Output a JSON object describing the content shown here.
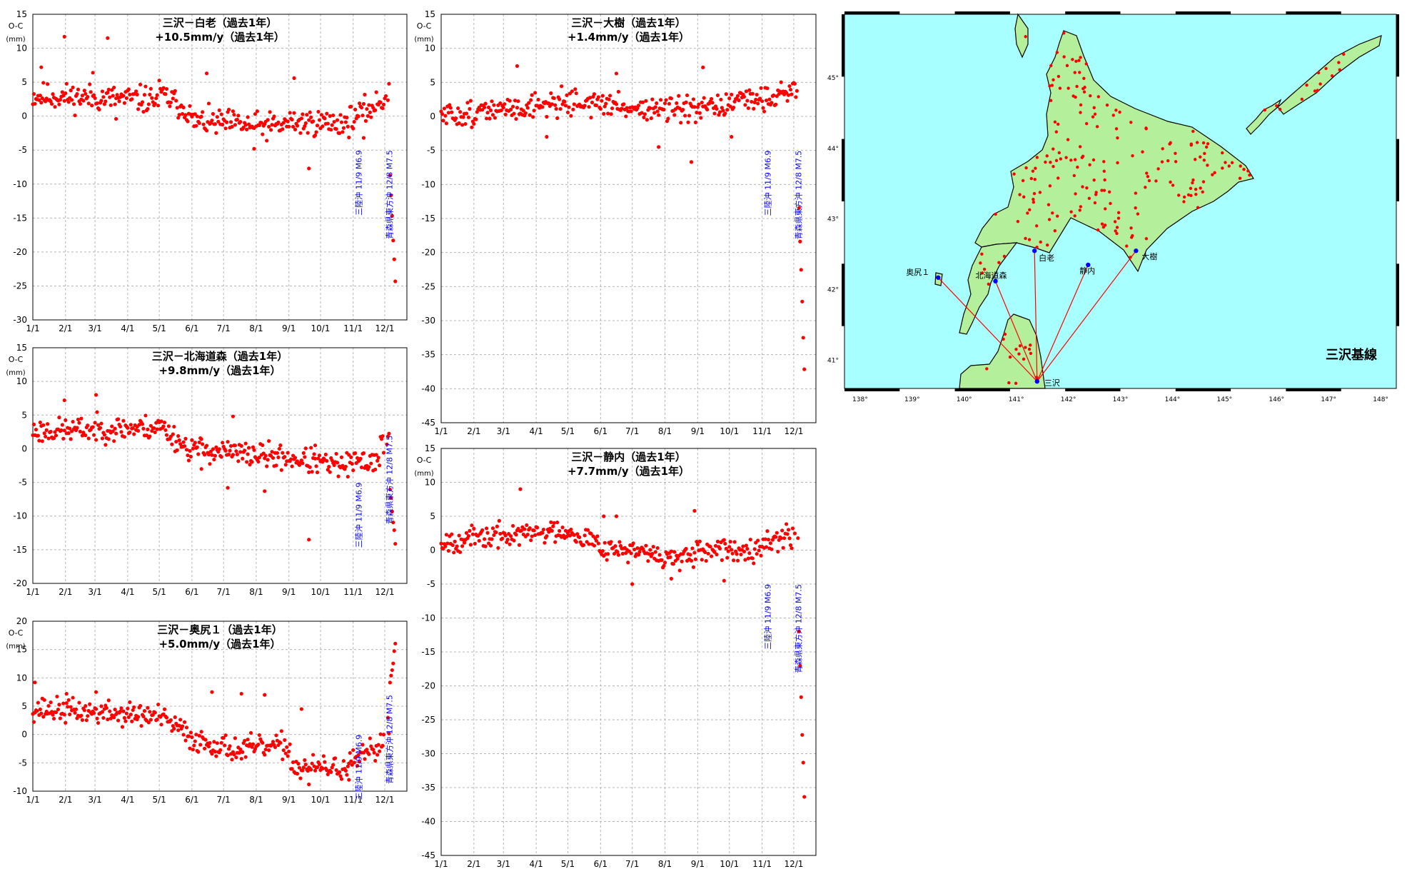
{
  "colors": {
    "point": "#ff0000",
    "grid": "#b4b4b4",
    "eq_label": "#0000ff",
    "land": "#b4f09c",
    "sea": "#a8ffff",
    "baseline": "#ff0000",
    "station": "#0000ff"
  },
  "chart_data": [
    {
      "type": "scatter",
      "id": "shirao",
      "title": "三沢－白老（過去1年）",
      "subtitle": "+10.5mm/y（過去1年）",
      "ylabel_top": "O-C",
      "ylabel_unit": "(mm)",
      "ylim": [
        -30,
        15
      ],
      "yticks": [
        15,
        10,
        5,
        0,
        -5,
        -10,
        -15,
        -20,
        -25,
        -30
      ],
      "xticks": [
        "1/1",
        "2/1",
        "3/1",
        "4/1",
        "5/1",
        "6/1",
        "7/1",
        "8/1",
        "9/1",
        "10/1",
        "11/1",
        "12/1"
      ],
      "x_day_ticks": [
        0,
        31,
        59,
        90,
        120,
        151,
        181,
        212,
        243,
        273,
        304,
        334
      ],
      "xlim": [
        0,
        355
      ],
      "segments": [
        [
          0,
          3.0,
          2.4
        ],
        [
          120,
          3.4,
          0.6
        ],
        [
          150,
          -0.8,
          -1.2
        ],
        [
          200,
          -1.5,
          -1.4
        ],
        [
          240,
          -0.9,
          -1.0
        ],
        [
          300,
          -0.6,
          2.0
        ],
        [
          330,
          2.0,
          3.8
        ],
        [
          339,
          -8.0,
          -28.0
        ]
      ],
      "outliers": [
        [
          8,
          7.2
        ],
        [
          30,
          11.7
        ],
        [
          57,
          6.4
        ],
        [
          71,
          11.5
        ],
        [
          79,
          -0.4
        ],
        [
          165,
          6.3
        ],
        [
          210,
          -4.8
        ],
        [
          248,
          5.6
        ],
        [
          262,
          -7.7
        ],
        [
          314,
          -3.2
        ]
      ],
      "noise": 1.4,
      "seed": 11,
      "earthquakes": [
        {
          "day": 312,
          "label": "三陸沖 11/9 M6.9",
          "y": -5
        },
        {
          "day": 341,
          "label": "青森県東方沖 12/8 M7.5",
          "y": -5
        }
      ]
    },
    {
      "type": "scatter",
      "id": "hokkaidomori",
      "title": "三沢－北海道森（過去1年）",
      "subtitle": "+9.8mm/y（過去1年）",
      "ylabel_top": "O-C",
      "ylabel_unit": "(mm)",
      "ylim": [
        -20,
        15
      ],
      "yticks": [
        15,
        10,
        5,
        0,
        -5,
        -10,
        -15,
        -20
      ],
      "xticks": [
        "1/1",
        "2/1",
        "3/1",
        "4/1",
        "5/1",
        "6/1",
        "7/1",
        "8/1",
        "9/1",
        "10/1",
        "11/1",
        "12/1"
      ],
      "x_day_ticks": [
        0,
        31,
        59,
        90,
        120,
        151,
        181,
        212,
        243,
        273,
        304,
        334
      ],
      "xlim": [
        0,
        355
      ],
      "segments": [
        [
          0,
          2.6,
          3.2
        ],
        [
          120,
          3.6,
          0.3
        ],
        [
          145,
          0.2,
          -0.8
        ],
        [
          200,
          -0.8,
          -1.3
        ],
        [
          240,
          -1.3,
          -2.6
        ],
        [
          290,
          -2.6,
          -1.5
        ],
        [
          330,
          0.8,
          1.8
        ],
        [
          339,
          -6.0,
          -15.8
        ]
      ],
      "outliers": [
        [
          30,
          7.2
        ],
        [
          60,
          8.0
        ],
        [
          160,
          -3.0
        ],
        [
          185,
          -5.8
        ],
        [
          190,
          4.8
        ],
        [
          220,
          -6.3
        ],
        [
          262,
          -13.5
        ],
        [
          268,
          0.5
        ],
        [
          318,
          -3.0
        ]
      ],
      "noise": 1.3,
      "seed": 23,
      "earthquakes": [
        {
          "day": 312,
          "label": "三陸沖 11/9 M6.9",
          "y": -5
        },
        {
          "day": 341,
          "label": "青森県東方沖 12/8 M7.5",
          "y": 2
        }
      ]
    },
    {
      "type": "scatter",
      "id": "okushiri",
      "title": "三沢－奥尻１（過去1年）",
      "subtitle": "+5.0mm/y（過去1年）",
      "ylabel_top": "O-C",
      "ylabel_unit": "(mm)",
      "ylim": [
        -10,
        20
      ],
      "yticks": [
        20,
        15,
        10,
        5,
        0,
        -5,
        -10
      ],
      "xticks": [
        "1/1",
        "2/1",
        "3/1",
        "4/1",
        "5/1",
        "6/1",
        "7/1",
        "8/1",
        "9/1",
        "10/1",
        "11/1",
        "12/1"
      ],
      "x_day_ticks": [
        0,
        31,
        59,
        90,
        120,
        151,
        181,
        212,
        243,
        273,
        304,
        334
      ],
      "xlim": [
        0,
        355
      ],
      "segments": [
        [
          0,
          4.6,
          3.2
        ],
        [
          120,
          3.0,
          0.5
        ],
        [
          145,
          -0.5,
          -3.0
        ],
        [
          200,
          -2.5,
          -2.0
        ],
        [
          245,
          -5.8,
          -6.0
        ],
        [
          300,
          -5.5,
          -2.0
        ],
        [
          330,
          -2.0,
          2.0
        ],
        [
          339,
          9.0,
          17.5
        ]
      ],
      "outliers": [
        [
          2,
          9.2
        ],
        [
          32,
          7.2
        ],
        [
          60,
          7.5
        ],
        [
          170,
          7.5
        ],
        [
          198,
          7.2
        ],
        [
          220,
          7.0
        ],
        [
          255,
          4.5
        ],
        [
          262,
          -8.8
        ],
        [
          300,
          -8.0
        ]
      ],
      "noise": 1.5,
      "seed": 37,
      "earthquakes": [
        {
          "day": 312,
          "label": "三陸沖 11/9 M6.9",
          "y": 0
        },
        {
          "day": 341,
          "label": "青森県東方沖 12/8 M7.5",
          "y": 7
        }
      ]
    },
    {
      "type": "scatter",
      "id": "taiki",
      "title": "三沢－大樹（過去1年）",
      "subtitle": "+1.4mm/y（過去1年）",
      "ylabel_top": "O-C",
      "ylabel_unit": "(mm)",
      "ylim": [
        -45,
        15
      ],
      "yticks": [
        15,
        10,
        5,
        0,
        -5,
        -10,
        -15,
        -20,
        -25,
        -30,
        -35,
        -40,
        -45
      ],
      "xticks": [
        "1/1",
        "2/1",
        "3/1",
        "4/1",
        "5/1",
        "6/1",
        "7/1",
        "8/1",
        "9/1",
        "10/1",
        "11/1",
        "12/1"
      ],
      "x_day_ticks": [
        0,
        31,
        59,
        90,
        120,
        151,
        181,
        212,
        243,
        273,
        304,
        334
      ],
      "xlim": [
        0,
        355
      ],
      "segments": [
        [
          0,
          0.0,
          1.0
        ],
        [
          60,
          1.0,
          2.3
        ],
        [
          120,
          2.3,
          1.3
        ],
        [
          180,
          1.3,
          0.7
        ],
        [
          240,
          0.7,
          2.6
        ],
        [
          300,
          2.6,
          4.0
        ],
        [
          339,
          -13.0,
          -42.0
        ]
      ],
      "outliers": [
        [
          72,
          7.4
        ],
        [
          100,
          -3.0
        ],
        [
          166,
          6.3
        ],
        [
          206,
          -4.5
        ],
        [
          237,
          -6.7
        ],
        [
          248,
          7.2
        ],
        [
          275,
          -3.0
        ]
      ],
      "noise": 1.3,
      "seed": 51,
      "earthquakes": [
        {
          "day": 312,
          "label": "三陸沖 11/9 M6.9",
          "y": -5
        },
        {
          "day": 341,
          "label": "青森県東方沖 12/8 M7.5",
          "y": -5
        }
      ]
    },
    {
      "type": "scatter",
      "id": "shizunai",
      "title": "三沢－静内（過去1年）",
      "subtitle": "+7.7mm/y（過去1年）",
      "ylabel_top": "O-C",
      "ylabel_unit": "(mm)",
      "ylim": [
        -45,
        15
      ],
      "yticks": [
        15,
        10,
        5,
        0,
        -5,
        -10,
        -15,
        -20,
        -25,
        -30,
        -35,
        -40,
        -45
      ],
      "xticks": [
        "1/1",
        "2/1",
        "3/1",
        "4/1",
        "5/1",
        "6/1",
        "7/1",
        "8/1",
        "9/1",
        "10/1",
        "11/1",
        "12/1"
      ],
      "x_day_ticks": [
        0,
        31,
        59,
        90,
        120,
        151,
        181,
        212,
        243,
        273,
        304,
        334
      ],
      "xlim": [
        0,
        355
      ],
      "segments": [
        [
          0,
          1.3,
          3.0
        ],
        [
          120,
          3.0,
          0.2
        ],
        [
          160,
          0.4,
          -1.0
        ],
        [
          210,
          -1.0,
          -1.5
        ],
        [
          240,
          -0.5,
          0.5
        ],
        [
          300,
          0.8,
          2.5
        ],
        [
          339,
          -12.0,
          -41.5
        ]
      ],
      "outliers": [
        [
          75,
          9.0
        ],
        [
          154,
          5.0
        ],
        [
          166,
          5.0
        ],
        [
          181,
          -5.0
        ],
        [
          218,
          -4.2
        ],
        [
          240,
          5.8
        ],
        [
          268,
          -4.5
        ]
      ],
      "noise": 1.2,
      "seed": 67,
      "earthquakes": [
        {
          "day": 312,
          "label": "三陸沖 11/9 M6.9",
          "y": -5
        },
        {
          "day": 341,
          "label": "青森県東方沖 12/8 M7.5",
          "y": -5
        }
      ]
    }
  ],
  "map": {
    "title": "三沢基線",
    "lon_labels": [
      "138°",
      "139°",
      "140°",
      "141°",
      "142°",
      "143°",
      "144°",
      "145°",
      "146°",
      "147°",
      "148°"
    ],
    "lat_labels": [
      "45°",
      "44°",
      "43°",
      "42°",
      "41°"
    ],
    "lon_range": [
      137.7,
      148.3
    ],
    "lat_range": [
      40.6,
      45.9
    ],
    "stations": [
      {
        "name": "三沢",
        "lon": 141.4,
        "lat": 40.7
      },
      {
        "name": "白老",
        "lon": 141.35,
        "lat": 42.55
      },
      {
        "name": "静内",
        "lon": 142.38,
        "lat": 42.35
      },
      {
        "name": "大樹",
        "lon": 143.3,
        "lat": 42.55
      },
      {
        "name": "北海道森",
        "lon": 140.6,
        "lat": 42.12
      },
      {
        "name": "奥尻１",
        "lon": 139.5,
        "lat": 42.17
      }
    ]
  }
}
